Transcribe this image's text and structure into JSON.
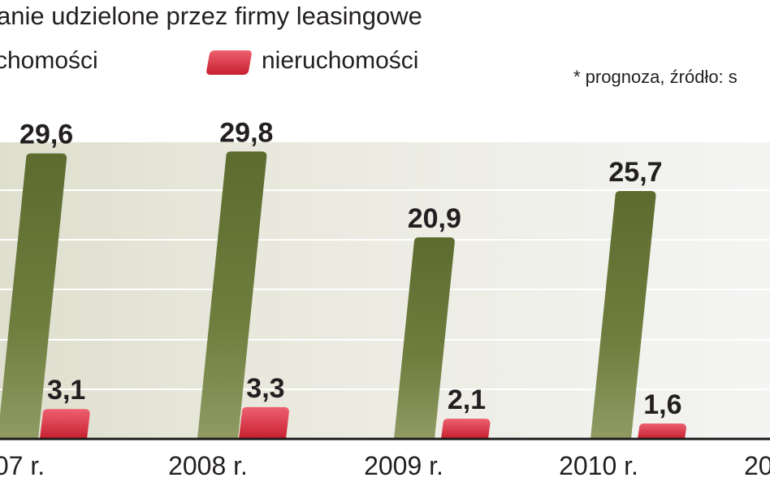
{
  "chart_data": {
    "type": "bar",
    "title": "anie udzielone przez firmy leasingowe",
    "note": "* prognoza, źródło: s",
    "categories": [
      "07 r.",
      "2008 r.",
      "2009 r.",
      "2010 r.",
      "20"
    ],
    "series": [
      {
        "name": "chomości",
        "color": "#667436",
        "values": [
          29.6,
          29.8,
          20.9,
          25.7,
          null
        ]
      },
      {
        "name": "nieruchomości",
        "color": "#d62f3f",
        "values": [
          3.1,
          3.3,
          2.1,
          1.6,
          null
        ]
      }
    ],
    "value_labels": {
      "s0": [
        "29,6",
        "29,8",
        "20,9",
        "25,7",
        ""
      ],
      "s1": [
        "3,1",
        "3,3",
        "2,1",
        "1,6",
        ""
      ]
    },
    "ylim": [
      0,
      30
    ],
    "grid": true
  }
}
